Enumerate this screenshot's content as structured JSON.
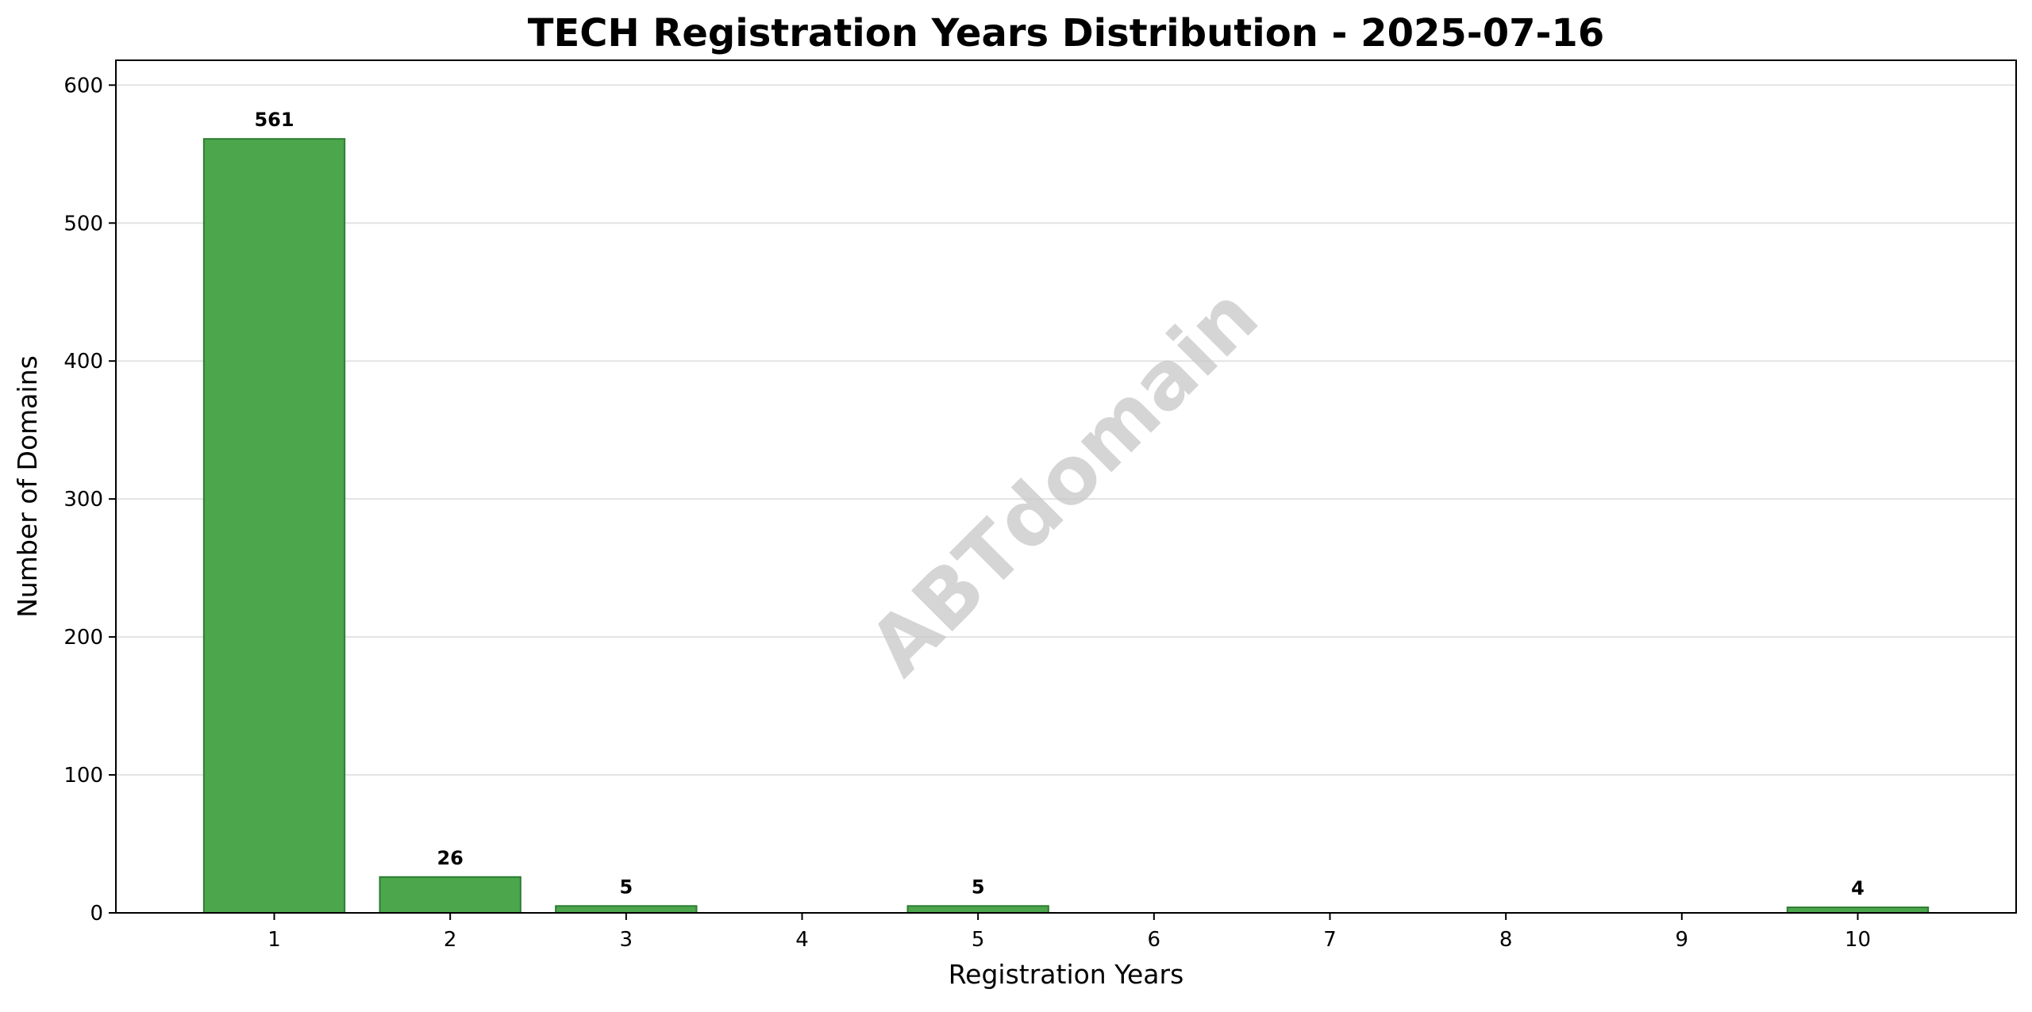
{
  "chart_data": {
    "type": "bar",
    "title": "TECH Registration Years Distribution - 2025-07-16",
    "xlabel": "Registration Years",
    "ylabel": "Number of Domains",
    "categories": [
      1,
      2,
      3,
      4,
      5,
      6,
      7,
      8,
      9,
      10
    ],
    "values": [
      561,
      26,
      5,
      0,
      5,
      0,
      0,
      0,
      0,
      4
    ],
    "data_labels": [
      "561",
      "26",
      "5",
      "",
      "5",
      "",
      "",
      "",
      "",
      "4"
    ],
    "xlim": [
      0.1,
      10.9
    ],
    "ylim": [
      0,
      618
    ],
    "yticks": [
      0,
      100,
      200,
      300,
      400,
      500,
      600
    ],
    "grid": "y",
    "bar_color": "#4ca64c",
    "bar_edge_color": "#2e7d32",
    "watermark": "ABTdomain"
  }
}
